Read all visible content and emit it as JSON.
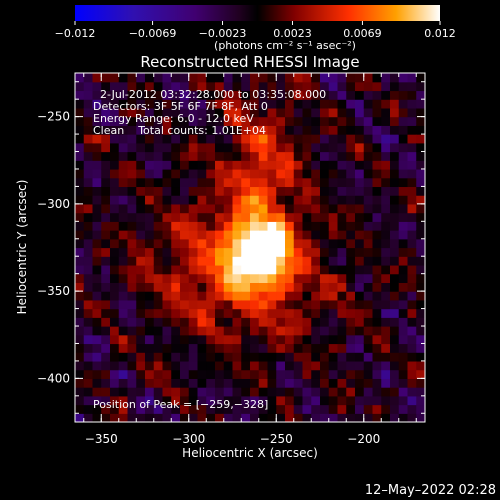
{
  "chart_data": {
    "type": "heatmap",
    "title": "Reconstructed RHESSI Image",
    "xlabel": "Heliocentric X (arcsec)",
    "ylabel": "Heliocentric Y (arcsec)",
    "xlim": [
      -365,
      -165
    ],
    "ylim": [
      -425,
      -225
    ],
    "x_ticks": [
      -350,
      -300,
      -250,
      -200
    ],
    "y_ticks": [
      -250,
      -300,
      -350,
      -400
    ],
    "x_tick_labels": [
      "−350",
      "−300",
      "−250",
      "−200"
    ],
    "y_tick_labels": [
      "−250",
      "−300",
      "−350",
      "−400"
    ],
    "colorbar": {
      "range": [
        -0.012,
        0.012
      ],
      "tick_values": [
        -0.012,
        -0.0069,
        -0.0023,
        0.0023,
        0.0069,
        0.012
      ],
      "tick_labels": [
        "−0.012",
        "−0.0069",
        "−0.0023",
        "0.0023",
        "0.0069",
        "0.012"
      ],
      "units_label": "(photons cm⁻² s⁻¹ asec⁻²)",
      "colormap": [
        "#0000ff",
        "#400070",
        "#000000",
        "#800000",
        "#ff3000",
        "#ffa000",
        "#ffffff"
      ]
    },
    "annotations": {
      "time_range": "2-Jul-2012 03:32:28.000 to 03:35:08.000",
      "detectors": "Detectors: 3F 5F 6F 7F 8F, Att 0",
      "energy": "Energy Range: 6.0 - 12.0 keV",
      "clean": "Clean    Total counts: 1.01E+04",
      "peak": "Position of Peak = [−259,−328]"
    },
    "peak": {
      "x": -259,
      "y": -328,
      "value": 0.012
    },
    "grid": false
  },
  "footer": {
    "timestamp": "12–May–2022 02:28"
  }
}
